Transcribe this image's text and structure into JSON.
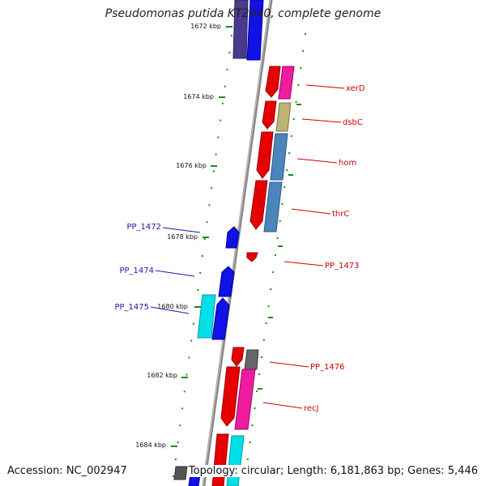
{
  "title": "Pseudomonas putida KT2440, complete genome",
  "footer": {
    "accession": "Accession: NC_002947",
    "topology": "Topology: circular; Length: 6,181,863 bp; Genes: 5,446"
  },
  "colors": {
    "backbone": "#8a8a8a",
    "tick": "#1e8a1e",
    "forward_label": "#1a1aa8",
    "reverse_label": "#cc0000"
  },
  "scale": {
    "unit": "kbp",
    "ticks": [
      {
        "label": "1672 kbp"
      },
      {
        "label": "1674 kbp"
      },
      {
        "label": "1676 kbp"
      },
      {
        "label": "1678 kbp"
      },
      {
        "label": "1680 kbp"
      },
      {
        "label": "1682 kbp"
      },
      {
        "label": "1684 kbp"
      }
    ]
  },
  "genes": {
    "forward": [
      {
        "label": "PP_1472"
      },
      {
        "label": "PP_1474"
      },
      {
        "label": "PP_1475"
      }
    ],
    "reverse": [
      {
        "label": "xerD"
      },
      {
        "label": "dsbC"
      },
      {
        "label": "hom"
      },
      {
        "label": "thrC"
      },
      {
        "label": "PP_1473"
      },
      {
        "label": "PP_1476"
      },
      {
        "label": "recJ"
      }
    ]
  }
}
